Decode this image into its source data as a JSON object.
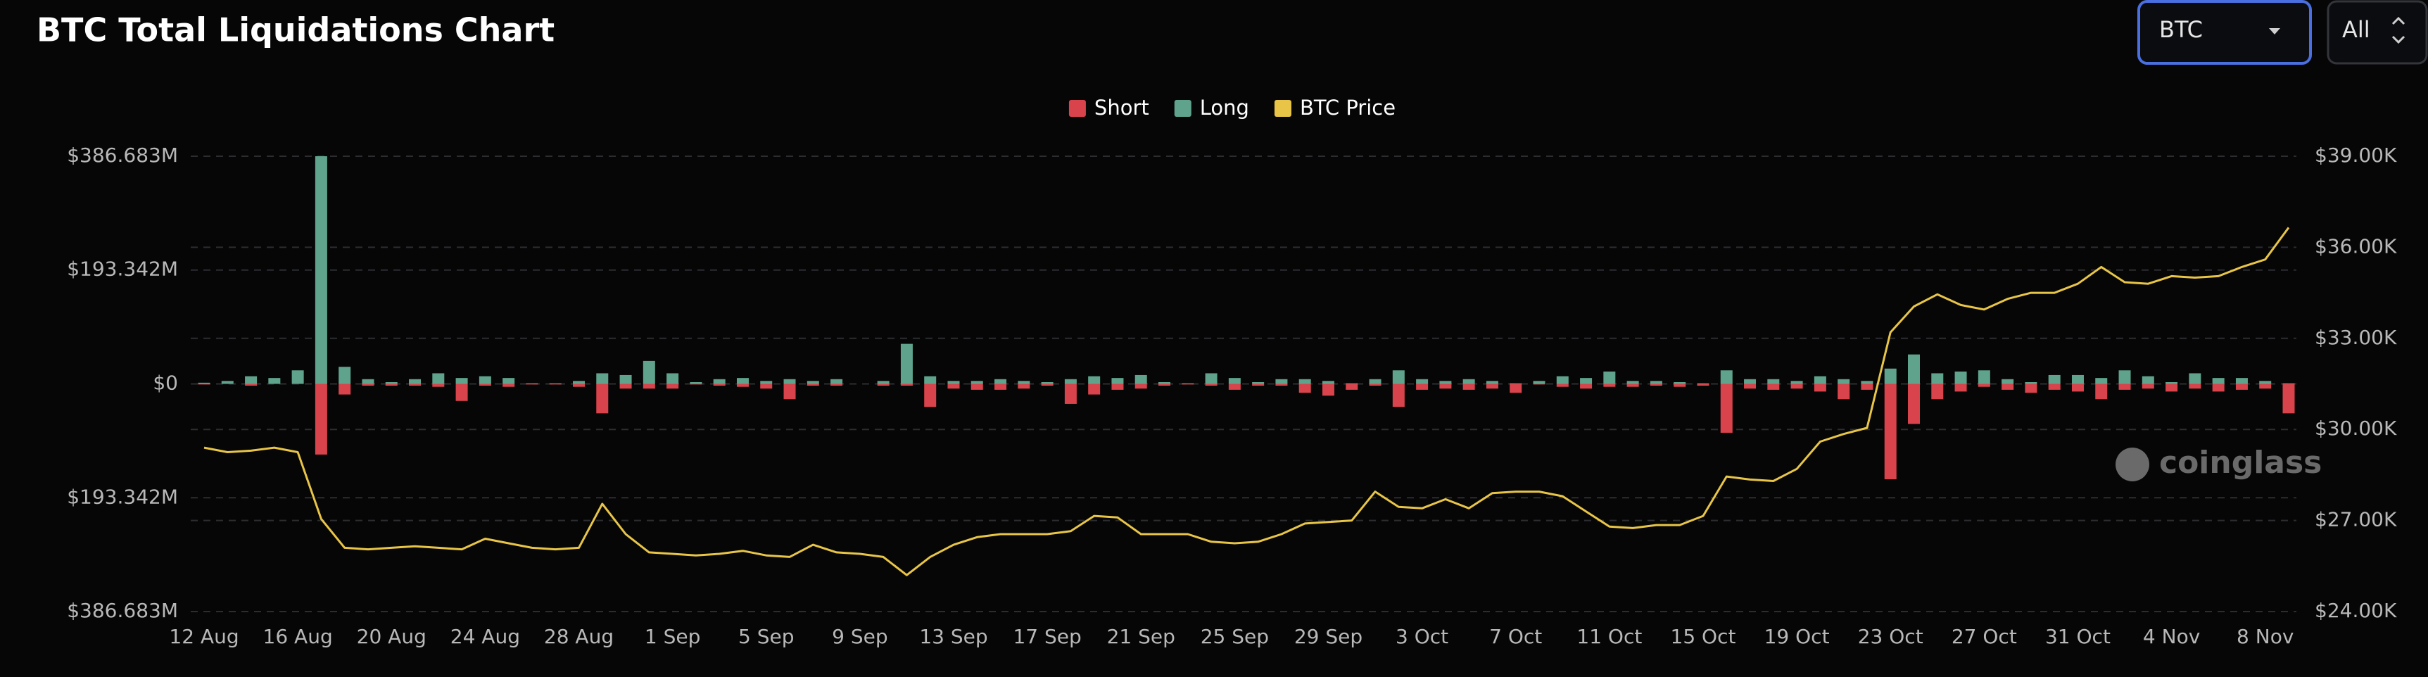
{
  "chart_data": {
    "type": "bar",
    "title": "BTC Total Liquidations Chart",
    "controls": {
      "symbol": "BTC",
      "range": "All"
    },
    "watermark": "coinglass",
    "categories": [
      "12 Aug",
      null,
      null,
      null,
      "16 Aug",
      null,
      null,
      null,
      "20 Aug",
      null,
      null,
      null,
      "24 Aug",
      null,
      null,
      null,
      "28 Aug",
      null,
      null,
      null,
      "1 Sep",
      null,
      null,
      null,
      "5 Sep",
      null,
      null,
      null,
      "9 Sep",
      null,
      null,
      null,
      "13 Sep",
      null,
      null,
      null,
      "17 Sep",
      null,
      null,
      null,
      "21 Sep",
      null,
      null,
      null,
      "25 Sep",
      null,
      null,
      null,
      "29 Sep",
      null,
      null,
      null,
      "3 Oct",
      null,
      null,
      null,
      "7 Oct",
      null,
      null,
      null,
      "11 Oct",
      null,
      null,
      null,
      "15 Oct",
      null,
      null,
      null,
      "19 Oct",
      null,
      null,
      null,
      "23 Oct",
      null,
      null,
      null,
      "27 Oct",
      null,
      null,
      null,
      "31 Oct",
      null,
      null,
      null,
      "4 Nov",
      null,
      null,
      null,
      "8 Nov",
      null
    ],
    "series": [
      {
        "name": "Short",
        "color": "#d9434b",
        "values": [
          -1000000,
          0,
          -3000000,
          0,
          0,
          -120000000,
          -18000000,
          -3000000,
          -3000000,
          -3000000,
          -5000000,
          -29000000,
          -3000000,
          -5000000,
          -1000000,
          -1000000,
          -5000000,
          -50000000,
          -8000000,
          -8000000,
          -8000000,
          -1000000,
          -3000000,
          -5000000,
          -8000000,
          -26000000,
          -3000000,
          -3000000,
          0,
          -3000000,
          -3000000,
          -39000000,
          -8000000,
          -10000000,
          -10000000,
          -8000000,
          -3000000,
          -34000000,
          -18000000,
          -10000000,
          -8000000,
          -3000000,
          -1000000,
          -3000000,
          -10000000,
          -3000000,
          -3000000,
          -15000000,
          -20000000,
          -10000000,
          -3000000,
          -39000000,
          -10000000,
          -8000000,
          -10000000,
          -8000000,
          -15000000,
          -1000000,
          -5000000,
          -8000000,
          -5000000,
          -5000000,
          -3000000,
          -5000000,
          -3000000,
          -83000000,
          -8000000,
          -10000000,
          -8000000,
          -13000000,
          -26000000,
          -10000000,
          -162000000,
          -68000000,
          -26000000,
          -13000000,
          -5000000,
          -10000000,
          -15000000,
          -10000000,
          -13000000,
          -26000000,
          -10000000,
          -8000000,
          -13000000,
          -8000000,
          -13000000,
          -10000000,
          -8000000,
          -50000000
        ]
      },
      {
        "name": "Long",
        "color": "#5fa38d",
        "values": [
          2000000,
          5000000,
          13000000,
          10000000,
          23000000,
          386683000,
          29000000,
          8000000,
          3000000,
          8000000,
          18000000,
          10000000,
          13000000,
          10000000,
          1000000,
          1000000,
          5000000,
          18000000,
          15000000,
          39000000,
          18000000,
          3000000,
          8000000,
          10000000,
          5000000,
          8000000,
          5000000,
          8000000,
          0,
          5000000,
          68000000,
          13000000,
          5000000,
          5000000,
          8000000,
          5000000,
          3000000,
          8000000,
          13000000,
          10000000,
          15000000,
          3000000,
          1000000,
          18000000,
          10000000,
          3000000,
          8000000,
          8000000,
          5000000,
          1000000,
          8000000,
          23000000,
          8000000,
          5000000,
          8000000,
          5000000,
          1000000,
          5000000,
          13000000,
          10000000,
          21000000,
          5000000,
          5000000,
          3000000,
          1000000,
          23000000,
          8000000,
          8000000,
          5000000,
          13000000,
          8000000,
          5000000,
          26000000,
          50000000,
          18000000,
          21000000,
          23000000,
          8000000,
          3000000,
          15000000,
          15000000,
          10000000,
          23000000,
          13000000,
          3000000,
          18000000,
          10000000,
          10000000,
          5000000,
          1000000
        ]
      },
      {
        "name": "BTC Price",
        "color": "#e8c547",
        "axis": "y2",
        "values": [
          29400,
          29250,
          29300,
          29400,
          29250,
          27050,
          26100,
          26050,
          26100,
          26150,
          26100,
          26050,
          26400,
          26250,
          26100,
          26050,
          26100,
          27550,
          26550,
          25950,
          25900,
          25850,
          25900,
          26000,
          25850,
          25800,
          26200,
          25950,
          25900,
          25800,
          25200,
          25800,
          26200,
          26450,
          26550,
          26550,
          26550,
          26650,
          27150,
          27100,
          26550,
          26550,
          26550,
          26300,
          26250,
          26300,
          26550,
          26900,
          26950,
          27000,
          27950,
          27450,
          27400,
          27700,
          27400,
          27900,
          27950,
          27950,
          27800,
          27300,
          26800,
          26750,
          26850,
          26850,
          27150,
          28450,
          28350,
          28300,
          28700,
          29600,
          29850,
          30050,
          33200,
          34050,
          34450,
          34100,
          33950,
          34300,
          34500,
          34500,
          34800,
          35350,
          34850,
          34800,
          35050,
          35000,
          35050,
          35350,
          35600,
          36650
        ]
      }
    ],
    "ylim": [
      -386683000,
      386683000
    ],
    "yticks": [
      {
        "value": 386683000,
        "label": "$386.683M"
      },
      {
        "value": 193342000,
        "label": "$193.342M"
      },
      {
        "value": 0,
        "label": "$0"
      },
      {
        "value": -193342000,
        "label": "$193.342M"
      },
      {
        "value": -386683000,
        "label": "$386.683M"
      }
    ],
    "y2lim": [
      24000,
      39000
    ],
    "y2ticks": [
      {
        "value": 39000,
        "label": "$39.00K"
      },
      {
        "value": 36000,
        "label": "$36.00K"
      },
      {
        "value": 33000,
        "label": "$33.00K"
      },
      {
        "value": 30000,
        "label": "$30.00K"
      },
      {
        "value": 27000,
        "label": "$27.00K"
      },
      {
        "value": 24000,
        "label": "$24.00K"
      }
    ],
    "grid": true,
    "legend": "top"
  }
}
